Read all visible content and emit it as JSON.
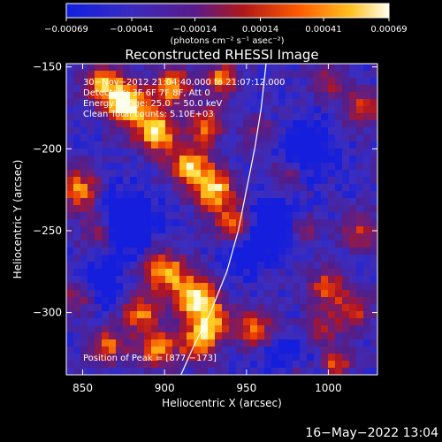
{
  "chart_data": {
    "type": "heatmap",
    "title": "Reconstructed RHESSI Image",
    "xlabel": "Heliocentric X (arcsec)",
    "ylabel": "Heliocentric Y (arcsec)",
    "xlim": [
      840,
      1030
    ],
    "ylim": [
      -338,
      -148
    ],
    "x_ticks": [
      850,
      900,
      950,
      1000
    ],
    "x_tick_labels": [
      "850",
      "900",
      "950",
      "1000"
    ],
    "y_ticks": [
      -150,
      -200,
      -250,
      -300
    ],
    "y_tick_labels": [
      "−150",
      "−200",
      "−250",
      "−300"
    ],
    "colorbar": {
      "range": [
        -0.00069,
        0.00069
      ],
      "ticks": [
        -0.00069,
        -0.00041,
        -0.00014,
        0.00014,
        0.00041,
        0.00069
      ],
      "tick_labels": [
        "−0.00069",
        "−0.00041",
        "−0.00014",
        "0.00014",
        "0.00041",
        "0.00069"
      ],
      "units": "(photons cm⁻² s⁻¹ asec⁻²)"
    },
    "annotations": [
      "30−Nov−2012 21:04:40.000 to 21:07:12.000",
      "Detectors: 3F 6F 7F 8F, Att 0",
      "Energy Range: 25.0 − 50.0 keV",
      "Clean    Total counts: 5.10E+03"
    ],
    "peak_label": "Position of Peak = [877,−173]",
    "limb_curve": [
      [
        910,
        -338
      ],
      [
        918,
        -320
      ],
      [
        928,
        -300
      ],
      [
        938,
        -275
      ],
      [
        945,
        -250
      ],
      [
        950,
        -225
      ],
      [
        955,
        -200
      ],
      [
        959,
        -175
      ],
      [
        962,
        -148
      ]
    ],
    "grid": false,
    "colormap": "blue-purple-red-yellow-white"
  },
  "footer_timestamp": "16−May−2022 13:04"
}
